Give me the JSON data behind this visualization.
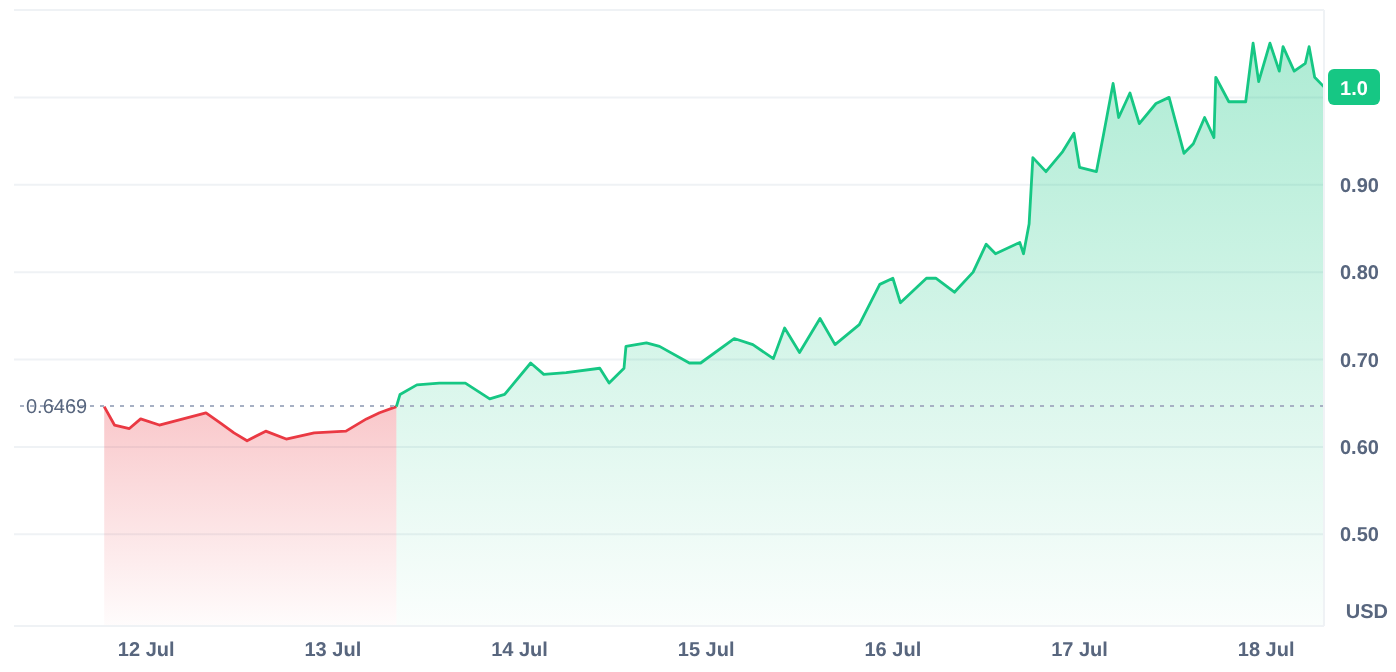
{
  "chart_data": {
    "type": "area",
    "ylabel": "USD",
    "series": [
      {
        "color": "#ea3943",
        "x": [
          "--07-11T18:36",
          "--07-11T19:55",
          "--07-11T21:50",
          "--07-11T23:17",
          "--07-12T01:41",
          "--07-12T07:41",
          "--07-12T09:36",
          "--07-12T11:17",
          "--07-12T12:58",
          "--07-12T15:22",
          "--07-12T18:00",
          "--07-12T21:36",
          "--07-13T01:41",
          "--07-13T04:19",
          "--07-13T06:00",
          "--07-13T08:10"
        ],
        "values": [
          0.646,
          0.625,
          0.621,
          0.632,
          0.625,
          0.639,
          0.627,
          0.616,
          0.607,
          0.618,
          0.609,
          0.616,
          0.618,
          0.632,
          0.639,
          0.646
        ]
      },
      {
        "color": "#16c784",
        "x": [
          "--07-13T08:10",
          "--07-13T08:38",
          "--07-13T10:48",
          "--07-13T13:41",
          "--07-13T17:02",
          "--07-13T20:10",
          "--07-13T22:05",
          "--07-13T23:17",
          "--07-14T01:26",
          "--07-14T03:07",
          "--07-14T06:00",
          "--07-14T10:19",
          "--07-14T11:31",
          "--07-14T13:26",
          "--07-14T13:41",
          "--07-14T16:19",
          "--07-14T18:00",
          "--07-14T21:50",
          "--07-14T23:17",
          "--07-15T03:36",
          "--07-15T06:00",
          "--07-15T08:38",
          "--07-15T10:05",
          "--07-15T12:00",
          "--07-15T14:38",
          "--07-15T16:34",
          "--07-15T19:41",
          "--07-15T22:19",
          "--07-16T00:00",
          "--07-16T00:58",
          "--07-16T04:19",
          "--07-16T05:31",
          "--07-16T07:55",
          "--07-16T10:19",
          "--07-16T12:00",
          "--07-16T13:12",
          "--07-16T16:19",
          "--07-16T16:48",
          "--07-16T17:31",
          "--07-16T18:00",
          "--07-16T19:41",
          "--07-16T21:50",
          "--07-16T23:17",
          "--07-17T00:00",
          "--07-17T02:10",
          "--07-17T03:07",
          "--07-17T04:19",
          "--07-17T05:02",
          "--07-17T06:29",
          "--07-17T07:41",
          "--07-17T09:50",
          "--07-17T11:31",
          "--07-17T13:26",
          "--07-17T14:38",
          "--07-17T16:05",
          "--07-17T17:17",
          "--07-17T17:31",
          "--07-17T19:12",
          "--07-17T21:22",
          "--07-17T22:19",
          "--07-17T23:02",
          "--07-18T00:29",
          "--07-18T01:41",
          "--07-18T02:10",
          "--07-18T03:36",
          "--07-18T05:02",
          "--07-18T05:31",
          "--07-18T06:14",
          "--07-18T07:26"
        ],
        "values": [
          0.646,
          0.66,
          0.671,
          0.673,
          0.673,
          0.655,
          0.66,
          0.673,
          0.696,
          0.683,
          0.685,
          0.69,
          0.673,
          0.69,
          0.715,
          0.719,
          0.715,
          0.696,
          0.696,
          0.724,
          0.717,
          0.701,
          0.736,
          0.708,
          0.747,
          0.717,
          0.74,
          0.786,
          0.793,
          0.765,
          0.793,
          0.793,
          0.777,
          0.8,
          0.832,
          0.821,
          0.834,
          0.821,
          0.855,
          0.931,
          0.915,
          0.938,
          0.959,
          0.92,
          0.915,
          0.959,
          1.016,
          0.977,
          1.005,
          0.97,
          0.993,
          1.0,
          0.936,
          0.947,
          0.977,
          0.954,
          1.023,
          0.995,
          0.995,
          1.062,
          1.018,
          1.062,
          1.03,
          1.058,
          1.03,
          1.039,
          1.058,
          1.023,
          1.012
        ]
      }
    ],
    "xlim": [
      "--07-11T07:00",
      "--07-18T07:26"
    ],
    "xticks": [
      {
        "value": "--07-12",
        "label": "12 Jul"
      },
      {
        "value": "--07-13",
        "label": "13 Jul"
      },
      {
        "value": "--07-14",
        "label": "14 Jul"
      },
      {
        "value": "--07-15",
        "label": "15 Jul"
      },
      {
        "value": "--07-16",
        "label": "16 Jul"
      },
      {
        "value": "--07-17",
        "label": "17 Jul"
      },
      {
        "value": "--07-18",
        "label": "18 Jul"
      }
    ],
    "ylim": [
      0.395,
      1.1
    ],
    "yticks": [
      {
        "value": 0.5,
        "label": "0.50"
      },
      {
        "value": 0.6,
        "label": "0.60"
      },
      {
        "value": 0.7,
        "label": "0.70"
      },
      {
        "value": 0.8,
        "label": "0.80"
      },
      {
        "value": 0.9,
        "label": "0.90"
      },
      {
        "value": 1.0,
        "label": null
      }
    ],
    "ref_lines": [
      {
        "axis": "y",
        "value": 0.6469,
        "label": "0.6469",
        "color": "#a6b0c3",
        "line_style": "dotted"
      }
    ],
    "annotations": [
      {
        "text": "1.0",
        "x": "--07-18T07:26",
        "y": 1.012
      }
    ],
    "grid": "y"
  }
}
